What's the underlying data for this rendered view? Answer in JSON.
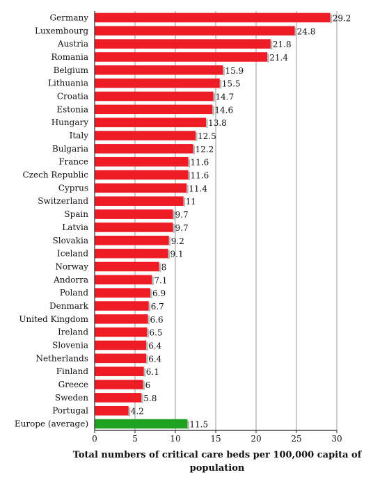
{
  "chart_data": {
    "type": "bar",
    "orientation": "horizontal",
    "categories": [
      "Germany",
      "Luxembourg",
      "Austria",
      "Romania",
      "Belgium",
      "Lithuania",
      "Croatia",
      "Estonia",
      "Hungary",
      "Italy",
      "Bulgaria",
      "France",
      "Czech Republic",
      "Cyprus",
      "Switzerland",
      "Spain",
      "Latvia",
      "Slovakia",
      "Iceland",
      "Norway",
      "Andorra",
      "Poland",
      "Denmark",
      "United Kingdom",
      "Ireland",
      "Slovenia",
      "Netherlands",
      "Finland",
      "Greece",
      "Sweden",
      "Portugal",
      "Europe (average)"
    ],
    "values": [
      29.2,
      24.8,
      21.8,
      21.4,
      15.9,
      15.5,
      14.7,
      14.6,
      13.8,
      12.5,
      12.2,
      11.6,
      11.6,
      11.4,
      11,
      9.7,
      9.7,
      9.2,
      9.1,
      8,
      7.1,
      6.9,
      6.7,
      6.6,
      6.5,
      6.4,
      6.4,
      6.1,
      6,
      5.8,
      4.2,
      11.5
    ],
    "value_labels": [
      "29.2",
      "24.8",
      "21.8",
      "21.4",
      "15.9",
      "15.5",
      "14.7",
      "14.6",
      "13.8",
      "12.5",
      "12.2",
      "11.6",
      "11.6",
      "11.4",
      "11",
      "9.7",
      "9.7",
      "9.2",
      "9.1",
      "8",
      "7.1",
      "6.9",
      "6.7",
      "6.6",
      "6.5",
      "6.4",
      "6.4",
      "6.1",
      "6",
      "5.8",
      "4.2",
      "11.5"
    ],
    "xlabel_lines": [
      "Total numbers of critical care beds per 100,000 capita of",
      "population"
    ],
    "xlim": [
      0,
      30
    ],
    "xticks": [
      0,
      5,
      10,
      15,
      20,
      25,
      30
    ],
    "grid": "vertical",
    "colors": {
      "bar": "#ee1c25",
      "average": "#1fa21f",
      "grid": "#9a9a9a",
      "axis": "#222222"
    }
  }
}
